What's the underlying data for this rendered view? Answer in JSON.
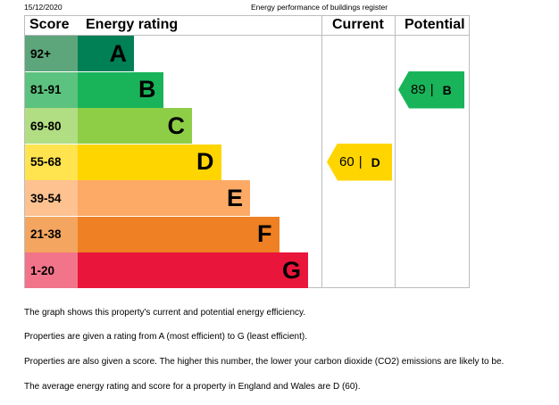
{
  "header": {
    "date": "15/12/2020",
    "title": "Energy performance of buildings register"
  },
  "chart_data": {
    "type": "table",
    "columns": [
      "Score",
      "Energy rating",
      "Current",
      "Potential"
    ],
    "bands": [
      {
        "score": "92+",
        "letter": "A",
        "color": "#008054",
        "score_bg": "#5da57b"
      },
      {
        "score": "81-91",
        "letter": "B",
        "color": "#19b459",
        "score_bg": "#5cc27f"
      },
      {
        "score": "69-80",
        "letter": "C",
        "color": "#8dce46",
        "score_bg": "#b1dd83"
      },
      {
        "score": "55-68",
        "letter": "D",
        "color": "#ffd500",
        "score_bg": "#ffe34f"
      },
      {
        "score": "39-54",
        "letter": "E",
        "color": "#fcaa65",
        "score_bg": "#fdc290"
      },
      {
        "score": "21-38",
        "letter": "F",
        "color": "#ef8023",
        "score_bg": "#f4a55f"
      },
      {
        "score": "1-20",
        "letter": "G",
        "color": "#e9153b",
        "score_bg": "#f1748a"
      }
    ],
    "current": {
      "value": 60,
      "letter": "D",
      "color": "#ffd500"
    },
    "potential": {
      "value": 89,
      "letter": "B",
      "color": "#19b459"
    }
  },
  "notes": [
    "The graph shows this property's current and potential energy efficiency.",
    "Properties are given a rating from A (most efficient) to G (least efficient).",
    "Properties are also given a score. The higher this number, the lower your carbon dioxide (CO2) emissions are likely to be.",
    "The average energy rating and score for a property in England and Wales are D (60)."
  ]
}
